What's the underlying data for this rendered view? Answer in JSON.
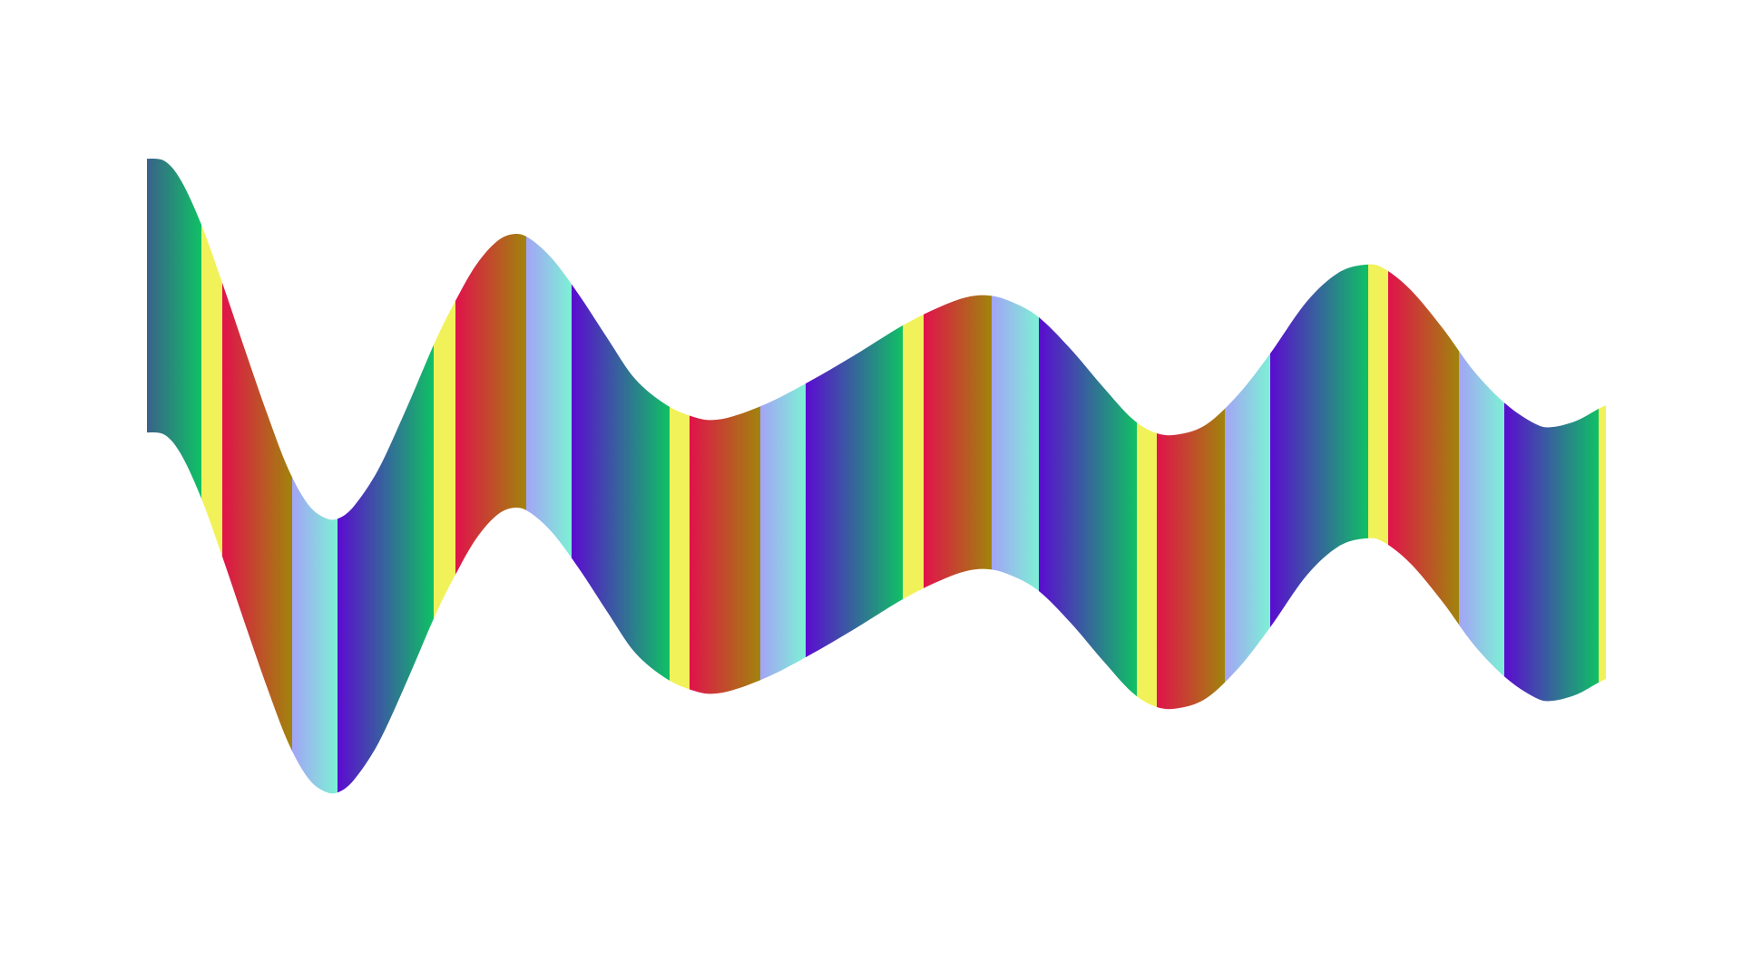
{
  "artwork": {
    "background_color": "#ffffff",
    "band_palette": [
      "#f1f25a",
      "#e1124b",
      "#a0850b",
      "#a3a4f6",
      "#7cf2d4",
      "#5b0bd0",
      "#0fc264"
    ],
    "edge_colors": {
      "left_end": "#3b5e8c",
      "right_end": "#f1f25a"
    }
  }
}
